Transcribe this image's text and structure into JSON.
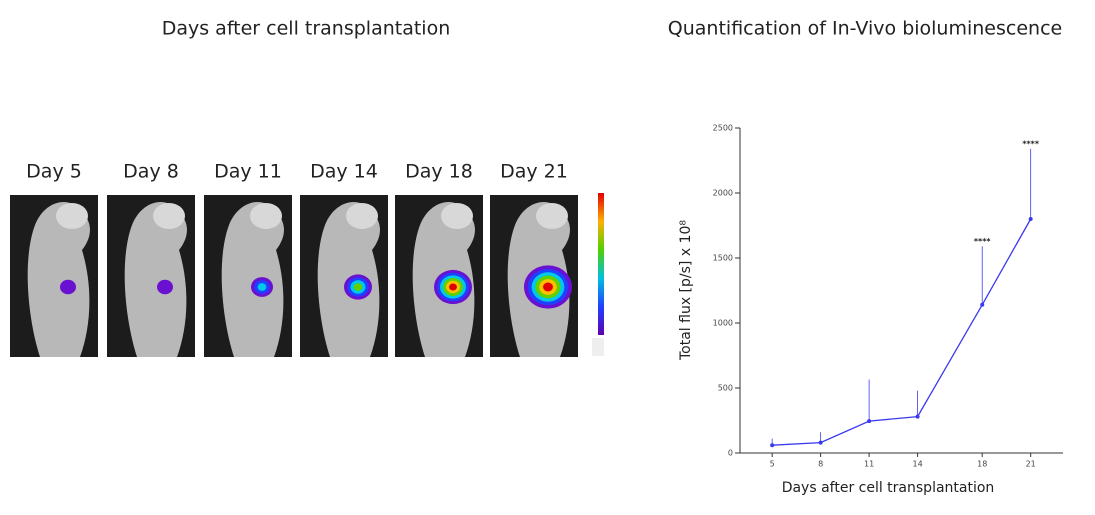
{
  "panel": {
    "title": "Days after cell transplantation",
    "days": [
      "Day 5",
      "Day 8",
      "Day 11",
      "Day 14",
      "Day 18",
      "Day 21"
    ]
  },
  "chart_data": {
    "type": "line",
    "title": "Quantification of In-Vivo bioluminescence",
    "x_label": "Days after cell transplantation",
    "y_label": "Total flux [p/s] x 10⁸",
    "x": [
      5,
      8,
      11,
      14,
      18,
      21
    ],
    "series": [
      {
        "color": "#3a3af0",
        "values": [
          60,
          80,
          245,
          280,
          1140,
          1800
        ],
        "errors": [
          50,
          80,
          320,
          200,
          450,
          540
        ]
      }
    ],
    "xlim": [
      2.7,
      23
    ],
    "xticks": [
      5,
      8,
      11,
      14,
      18,
      21
    ],
    "ylim": [
      0,
      2500
    ],
    "yticks": [
      0,
      500,
      1000,
      1500,
      2000,
      2500
    ],
    "annotations": [
      {
        "x": 18,
        "text": "****"
      },
      {
        "x": 21,
        "text": "****"
      }
    ]
  }
}
